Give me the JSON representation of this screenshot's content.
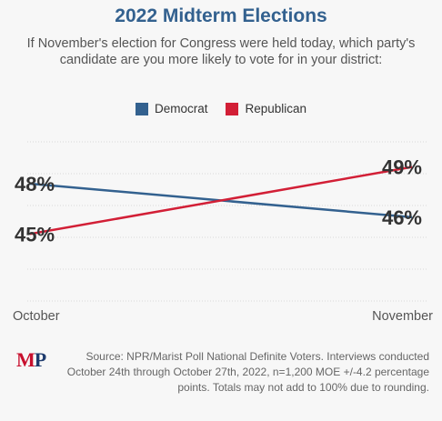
{
  "title": "2022 Midterm Elections",
  "subtitle": "If November's election for Congress were held today, which party's candidate are you more likely to vote for in your district:",
  "legend": [
    {
      "label": "Democrat",
      "color": "#33618f"
    },
    {
      "label": "Republican",
      "color": "#d21f36"
    }
  ],
  "chart_data": {
    "type": "line",
    "categories": [
      "October",
      "November"
    ],
    "series": [
      {
        "name": "Democrat",
        "values": [
          48,
          46
        ],
        "labels": [
          "48%",
          "46%"
        ],
        "color": "#33618f"
      },
      {
        "name": "Republican",
        "values": [
          45,
          49
        ],
        "labels": [
          "45%",
          "49%"
        ],
        "color": "#d21f36"
      }
    ],
    "title": "2022 Midterm Elections",
    "xlabel": "",
    "ylabel": "",
    "ylim": [
      41,
      50.5
    ],
    "grid": true,
    "legend_position": "top-center"
  },
  "footer": {
    "logo_m": "M",
    "logo_p": "P",
    "source": "Source: NPR/Marist Poll National Definite Voters. Interviews conducted October 24th through October 27th, 2022, n=1,200 MOE +/-4.2 percentage points. Totals may not add to 100% due to rounding."
  }
}
